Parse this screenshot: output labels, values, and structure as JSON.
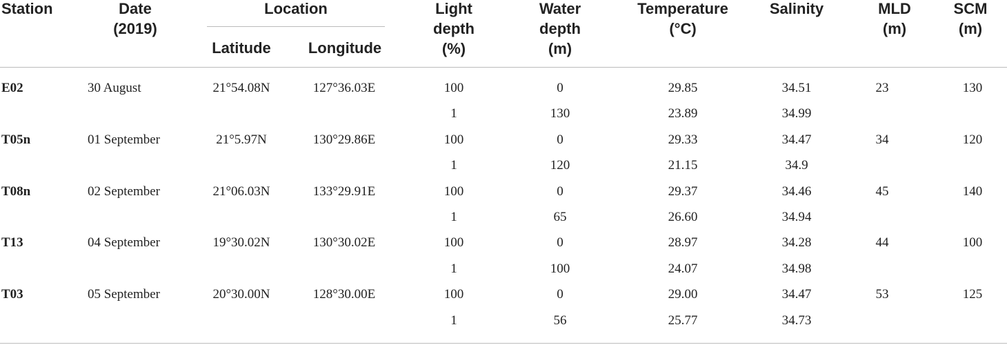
{
  "table": {
    "header": [
      [
        "Station"
      ],
      [
        "Date",
        "(2019)"
      ],
      [
        "Location"
      ],
      [
        "Light",
        "depth",
        "(%)"
      ],
      [
        "Water",
        "depth",
        "(m)"
      ],
      [
        "Temperature",
        "(°C)"
      ],
      [
        "Salinity"
      ],
      [
        "MLD",
        "(m)"
      ],
      [
        "SCM",
        "(m)"
      ]
    ],
    "subheader": [
      "Latitude",
      "Longitude"
    ],
    "rows": [
      [
        "E02",
        "30 August",
        "21°54.08N",
        "127°36.03E",
        "100",
        "0",
        "29.85",
        "34.51",
        "23",
        "130"
      ],
      [
        null,
        null,
        null,
        null,
        "1",
        "130",
        "23.89",
        "34.99",
        null,
        null
      ],
      [
        "T05n",
        "01 September",
        "21°5.97N",
        "130°29.86E",
        "100",
        "0",
        "29.33",
        "34.47",
        "34",
        "120"
      ],
      [
        null,
        null,
        null,
        null,
        "1",
        "120",
        "21.15",
        "34.9",
        null,
        null
      ],
      [
        "T08n",
        "02 September",
        "21°06.03N",
        "133°29.91E",
        "100",
        "0",
        "29.37",
        "34.46",
        "45",
        "140"
      ],
      [
        null,
        null,
        null,
        null,
        "1",
        "65",
        "26.60",
        "34.94",
        null,
        null
      ],
      [
        "T13",
        "04 September",
        "19°30.02N",
        "130°30.02E",
        "100",
        "0",
        "28.97",
        "34.28",
        "44",
        "100"
      ],
      [
        null,
        null,
        null,
        null,
        "1",
        "100",
        "24.07",
        "34.98",
        null,
        null
      ],
      [
        "T03",
        "05 September",
        "20°30.00N",
        "128°30.00E",
        "100",
        "0",
        "29.00",
        "34.47",
        "53",
        "125"
      ],
      [
        null,
        null,
        null,
        null,
        "1",
        "56",
        "25.77",
        "34.73",
        null,
        null
      ]
    ]
  }
}
